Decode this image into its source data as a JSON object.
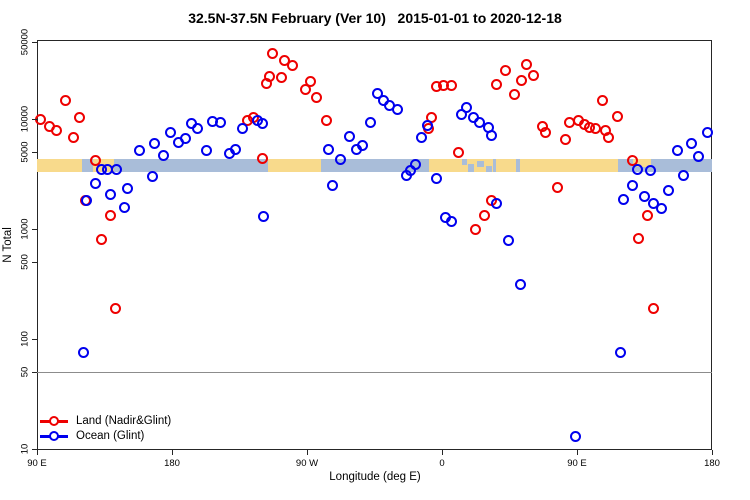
{
  "title": "32.5N-37.5N February (Ver 10)   2015-01-01 to 2020-12-18",
  "colors": {
    "land_series": "#ee0000",
    "ocean_series": "#0000ee",
    "land_band": "#f8da8c",
    "ocean_band": "#a9bdd9",
    "gridline": "#8c8c8c",
    "axis": "#262626"
  },
  "legend": {
    "items": [
      {
        "name": "land",
        "label": "Land (Nadir&Glint)",
        "color": "#ee0000"
      },
      {
        "name": "ocean",
        "label": "Ocean (Glint)",
        "color": "#0000ee"
      }
    ]
  },
  "chart_data": {
    "type": "scatter",
    "title": "32.5N-37.5N February (Ver 10)   2015-01-01 to 2020-12-18",
    "xlabel": "Longitude (deg E)",
    "ylabel": "N Total",
    "x_axis": {
      "scale": "linear",
      "lim": [
        90,
        540
      ],
      "ticks": [
        90,
        180,
        270,
        360,
        450,
        540
      ],
      "tick_labels": [
        "90 E",
        "180",
        "90 W",
        "0",
        "90 E",
        "180"
      ]
    },
    "y_axis": {
      "scale": "log10",
      "lim": [
        10,
        52000
      ],
      "ticks": [
        10,
        50,
        100,
        500,
        1000,
        5000,
        10000,
        50000
      ],
      "tick_labels": [
        "10",
        "50",
        "100",
        "500",
        "1000",
        "5000",
        "10000",
        "50000"
      ]
    },
    "gridlines_y": [
      50
    ],
    "map_band": {
      "n_top": 4300,
      "n_bottom": 3300,
      "ocean_from": 90,
      "ocean_to": 540,
      "land_segments": [
        {
          "from": 90,
          "to": 120
        },
        {
          "from": 127,
          "to": 141
        },
        {
          "from": 244,
          "to": 279
        },
        {
          "from": 351,
          "to": 394
        },
        {
          "from": 396,
          "to": 409
        },
        {
          "from": 412,
          "to": 477
        },
        {
          "from": 487,
          "to": 499,
          "frac_top": 0.0,
          "frac_h": 0.6
        }
      ],
      "ocean_speckles": [
        {
          "from": 373.0,
          "to": 376.5,
          "frac_top": 0.0,
          "frac_h": 0.45
        },
        {
          "from": 377.5,
          "to": 381.5,
          "frac_top": 0.4,
          "frac_h": 0.6
        },
        {
          "from": 383.5,
          "to": 388.0,
          "frac_top": 0.1,
          "frac_h": 0.5
        },
        {
          "from": 389.5,
          "to": 393.0,
          "frac_top": 0.5,
          "frac_h": 0.5
        }
      ]
    },
    "series": [
      {
        "name": "Land (Nadir&Glint)",
        "marker": "open-circle",
        "color": "#ee0000",
        "points": [
          [
            92,
            10000
          ],
          [
            98,
            8630
          ],
          [
            103,
            7940
          ],
          [
            109,
            14600
          ],
          [
            118,
            10400
          ],
          [
            114,
            6730
          ],
          [
            129,
            4160
          ],
          [
            122,
            1800
          ],
          [
            139,
            1340
          ],
          [
            133,
            795
          ],
          [
            142,
            191
          ],
          [
            230,
            9790
          ],
          [
            234,
            10400
          ],
          [
            240,
            4330
          ],
          [
            243,
            21200
          ],
          [
            245,
            24200
          ],
          [
            247,
            39300
          ],
          [
            255,
            33800
          ],
          [
            260,
            30400
          ],
          [
            253,
            23600
          ],
          [
            269,
            18400
          ],
          [
            272,
            21800
          ],
          [
            276,
            15600
          ],
          [
            283,
            9790
          ],
          [
            356,
            19600
          ],
          [
            361,
            20000
          ],
          [
            366,
            20000
          ],
          [
            353,
            10400
          ],
          [
            351,
            8130
          ],
          [
            371,
            5010
          ],
          [
            393,
            1830
          ],
          [
            388,
            1340
          ],
          [
            382,
            1000
          ],
          [
            396,
            20400
          ],
          [
            402,
            27400
          ],
          [
            416,
            31000
          ],
          [
            421,
            24600
          ],
          [
            413,
            22300
          ],
          [
            408,
            16600
          ],
          [
            427,
            8470
          ],
          [
            429,
            7470
          ],
          [
            442,
            6460
          ],
          [
            445,
            9380
          ],
          [
            451,
            9790
          ],
          [
            455,
            8870
          ],
          [
            458,
            8320
          ],
          [
            462,
            8150
          ],
          [
            437,
            2400
          ],
          [
            467,
            14600
          ],
          [
            477,
            10600
          ],
          [
            469,
            7940
          ],
          [
            471,
            6730
          ],
          [
            487,
            4160
          ],
          [
            497,
            1320
          ],
          [
            491,
            812
          ],
          [
            501,
            191
          ]
        ]
      },
      {
        "name": "Ocean (Glint)",
        "marker": "open-circle",
        "color": "#0000ee",
        "points": [
          [
            158,
            5210
          ],
          [
            167,
            3020
          ],
          [
            133,
            3510
          ],
          [
            137,
            3510
          ],
          [
            143,
            3440
          ],
          [
            129,
            2570
          ],
          [
            139,
            2080
          ],
          [
            150,
            2320
          ],
          [
            123,
            1800
          ],
          [
            148,
            1560
          ],
          [
            121,
            75
          ],
          [
            168,
            6030
          ],
          [
            174,
            4680
          ],
          [
            179,
            7590
          ],
          [
            184,
            6160
          ],
          [
            189,
            6580
          ],
          [
            193,
            9020
          ],
          [
            197,
            8150
          ],
          [
            203,
            5210
          ],
          [
            207,
            9420
          ],
          [
            212,
            9220
          ],
          [
            218,
            4890
          ],
          [
            222,
            5320
          ],
          [
            227,
            8150
          ],
          [
            237,
            9630
          ],
          [
            240,
            9020
          ],
          [
            241,
            1310
          ],
          [
            298,
            6880
          ],
          [
            303,
            5320
          ],
          [
            307,
            5780
          ],
          [
            284,
            5320
          ],
          [
            292,
            4250
          ],
          [
            287,
            2460
          ],
          [
            312,
            9220
          ],
          [
            317,
            16900
          ],
          [
            321,
            14600
          ],
          [
            325,
            13400
          ],
          [
            330,
            12200
          ],
          [
            350,
            8660
          ],
          [
            346,
            6730
          ],
          [
            342,
            3820
          ],
          [
            339,
            3370
          ],
          [
            336,
            3090
          ],
          [
            356,
            2900
          ],
          [
            376,
            12800
          ],
          [
            373,
            11100
          ],
          [
            381,
            10400
          ],
          [
            385,
            9220
          ],
          [
            391,
            8320
          ],
          [
            393,
            7060
          ],
          [
            362,
            1260
          ],
          [
            366,
            1160
          ],
          [
            396,
            1690
          ],
          [
            404,
            779
          ],
          [
            412,
            310
          ],
          [
            481,
            1870
          ],
          [
            487,
            2490
          ],
          [
            490,
            3510
          ],
          [
            499,
            3370
          ],
          [
            495,
            1980
          ],
          [
            506,
            1520
          ],
          [
            501,
            1720
          ],
          [
            511,
            2240
          ],
          [
            517,
            5210
          ],
          [
            521,
            3090
          ],
          [
            526,
            6030
          ],
          [
            531,
            4570
          ],
          [
            537,
            7590
          ],
          [
            479,
            75
          ],
          [
            449,
            13
          ]
        ]
      }
    ],
    "legend_position": "bottom-left"
  }
}
